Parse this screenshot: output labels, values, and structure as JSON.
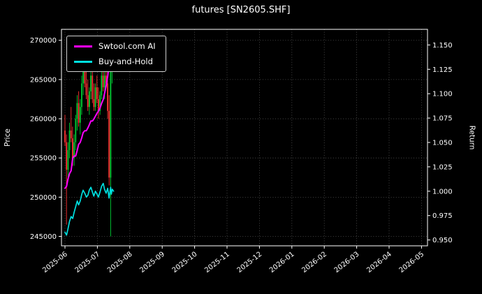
{
  "title": "futures [SN2605.SHF]",
  "axes": {
    "left_label": "Price",
    "right_label": "Return",
    "price_ticks": [
      "245000",
      "250000",
      "255000",
      "260000",
      "265000",
      "270000"
    ],
    "return_ticks": [
      "0.950",
      "0.975",
      "1.000",
      "1.025",
      "1.050",
      "1.075",
      "1.100",
      "1.125",
      "1.150"
    ],
    "x_ticks": [
      "2025-06",
      "2025-07",
      "2025-08",
      "2025-09",
      "2025-10",
      "2025-11",
      "2025-12",
      "2026-01",
      "2026-02",
      "2026-03",
      "2026-04",
      "2026-05"
    ]
  },
  "legend": {
    "items": [
      {
        "label": "Swtool.com AI",
        "color": "#ff00ff"
      },
      {
        "label": "Buy-and-Hold",
        "color": "#00e0e0"
      }
    ]
  },
  "colors": {
    "background": "#000000",
    "text": "#ffffff",
    "spine": "#ffffff",
    "grid": "#aaaaaa"
  },
  "chart_data": {
    "type": "mixed",
    "subtypes": [
      "candlestick",
      "line"
    ],
    "title": "futures [SN2605.SHF]",
    "x_axis": {
      "tick_labels": [
        "2025-06",
        "2025-07",
        "2025-08",
        "2025-09",
        "2025-10",
        "2025-11",
        "2025-12",
        "2026-01",
        "2026-02",
        "2026-03",
        "2026-04",
        "2026-05"
      ],
      "unit": "months_from_2025-06-01",
      "data_span": [
        0,
        1.5
      ]
    },
    "left_axis": {
      "label": "Price",
      "range": [
        243800,
        271400
      ],
      "ticks": [
        245000,
        250000,
        255000,
        260000,
        265000,
        270000
      ]
    },
    "right_axis": {
      "label": "Return",
      "range": [
        0.944,
        1.166
      ],
      "ticks": [
        0.95,
        0.975,
        1.0,
        1.025,
        1.05,
        1.075,
        1.1,
        1.125,
        1.15
      ]
    },
    "grid": true,
    "legend_position": "upper-left",
    "candles": {
      "axis": "left",
      "up_color": "#00cc33",
      "down_color": "#ff3232",
      "columns": [
        "t",
        "open",
        "high",
        "low",
        "close"
      ],
      "data": [
        [
          0.0,
          258500,
          260500,
          256500,
          257000
        ],
        [
          0.047,
          257000,
          258000,
          246500,
          253500
        ],
        [
          0.094,
          253500,
          257000,
          252500,
          256000
        ],
        [
          0.141,
          256000,
          259500,
          255000,
          258500
        ],
        [
          0.188,
          258500,
          261500,
          257000,
          257500
        ],
        [
          0.235,
          257500,
          259000,
          254000,
          255000
        ],
        [
          0.282,
          255000,
          258000,
          254000,
          257000
        ],
        [
          0.329,
          257000,
          260500,
          256000,
          260000
        ],
        [
          0.376,
          260000,
          263000,
          258500,
          262000
        ],
        [
          0.423,
          262000,
          263500,
          259000,
          259500
        ],
        [
          0.47,
          259500,
          262500,
          258000,
          261500
        ],
        [
          0.517,
          261500,
          265500,
          260500,
          264500
        ],
        [
          0.564,
          264500,
          267000,
          263000,
          266000
        ],
        [
          0.611,
          266000,
          267500,
          264000,
          264500
        ],
        [
          0.658,
          264500,
          266500,
          262500,
          263000
        ],
        [
          0.705,
          263000,
          265000,
          261000,
          261500
        ],
        [
          0.752,
          261500,
          264000,
          260500,
          263500
        ],
        [
          0.799,
          263500,
          266000,
          262500,
          265500
        ],
        [
          0.846,
          265500,
          266500,
          262000,
          262500
        ],
        [
          0.893,
          262500,
          264500,
          261000,
          261500
        ],
        [
          0.94,
          261500,
          264500,
          261000,
          264000
        ],
        [
          0.987,
          264000,
          265500,
          262000,
          262500
        ],
        [
          1.034,
          262500,
          264000,
          260000,
          261000
        ],
        [
          1.081,
          261000,
          263500,
          260500,
          263000
        ],
        [
          1.128,
          263000,
          266000,
          262500,
          265500
        ],
        [
          1.175,
          265500,
          267000,
          263500,
          264000
        ],
        [
          1.222,
          264000,
          266000,
          262500,
          265500
        ],
        [
          1.269,
          265500,
          267000,
          264000,
          264500
        ],
        [
          1.316,
          264500,
          266500,
          260000,
          261000
        ],
        [
          1.363,
          261000,
          263000,
          251500,
          252500
        ],
        [
          1.41,
          252500,
          267000,
          245000,
          266000
        ],
        [
          1.457,
          266000,
          268500,
          264500,
          267500
        ]
      ]
    },
    "series": [
      {
        "name": "Swtool.com AI",
        "axis": "right",
        "color": "#ff00ff",
        "width": 2,
        "points": [
          [
            0.0,
            1.003
          ],
          [
            0.05,
            1.005
          ],
          [
            0.09,
            1.012
          ],
          [
            0.14,
            1.018
          ],
          [
            0.19,
            1.021
          ],
          [
            0.24,
            1.034
          ],
          [
            0.28,
            1.036
          ],
          [
            0.33,
            1.036
          ],
          [
            0.38,
            1.042
          ],
          [
            0.42,
            1.048
          ],
          [
            0.47,
            1.05
          ],
          [
            0.52,
            1.055
          ],
          [
            0.56,
            1.06
          ],
          [
            0.61,
            1.062
          ],
          [
            0.66,
            1.062
          ],
          [
            0.71,
            1.065
          ],
          [
            0.75,
            1.068
          ],
          [
            0.8,
            1.072
          ],
          [
            0.85,
            1.072
          ],
          [
            0.89,
            1.074
          ],
          [
            0.94,
            1.077
          ],
          [
            0.99,
            1.08
          ],
          [
            1.03,
            1.082
          ],
          [
            1.08,
            1.085
          ],
          [
            1.13,
            1.09
          ],
          [
            1.18,
            1.094
          ],
          [
            1.22,
            1.1
          ],
          [
            1.27,
            1.108
          ],
          [
            1.32,
            1.118
          ],
          [
            1.36,
            1.13
          ],
          [
            1.41,
            1.145
          ],
          [
            1.43,
            1.157
          ],
          [
            1.46,
            1.15
          ],
          [
            1.5,
            1.153
          ]
        ]
      },
      {
        "name": "Buy-and-Hold",
        "axis": "right",
        "color": "#00e0e0",
        "width": 1.7,
        "points": [
          [
            0.0,
            0.958
          ],
          [
            0.05,
            0.955
          ],
          [
            0.09,
            0.961
          ],
          [
            0.14,
            0.969
          ],
          [
            0.19,
            0.974
          ],
          [
            0.24,
            0.972
          ],
          [
            0.28,
            0.978
          ],
          [
            0.33,
            0.984
          ],
          [
            0.38,
            0.99
          ],
          [
            0.42,
            0.986
          ],
          [
            0.47,
            0.99
          ],
          [
            0.52,
            0.997
          ],
          [
            0.56,
            1.001
          ],
          [
            0.61,
            0.998
          ],
          [
            0.66,
            0.994
          ],
          [
            0.71,
            0.996
          ],
          [
            0.75,
            1.001
          ],
          [
            0.8,
            1.004
          ],
          [
            0.85,
            0.999
          ],
          [
            0.89,
            0.995
          ],
          [
            0.94,
            1.0
          ],
          [
            0.99,
            0.997
          ],
          [
            1.03,
            0.994
          ],
          [
            1.08,
            0.999
          ],
          [
            1.13,
            1.005
          ],
          [
            1.18,
            1.008
          ],
          [
            1.22,
            1.002
          ],
          [
            1.27,
            0.998
          ],
          [
            1.32,
            1.003
          ],
          [
            1.36,
            0.993
          ],
          [
            1.41,
            1.004
          ],
          [
            1.43,
            0.997
          ],
          [
            1.46,
            1.002
          ],
          [
            1.5,
            1.0
          ]
        ]
      }
    ]
  }
}
